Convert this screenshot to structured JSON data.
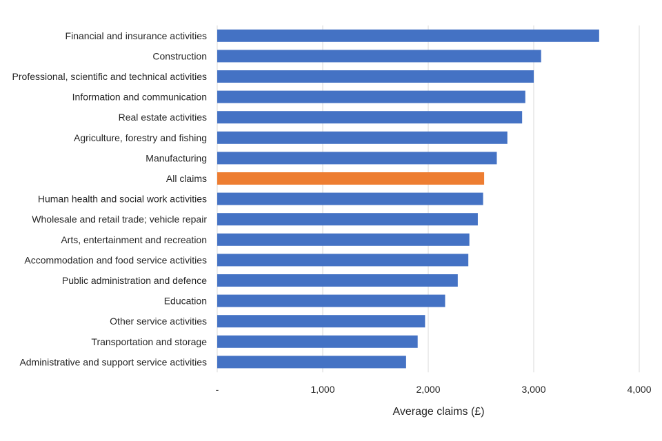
{
  "chart_data": {
    "type": "bar",
    "orientation": "horizontal",
    "title": "",
    "xlabel": "Average claims (£)",
    "ylabel": "",
    "xlim": [
      0,
      4000
    ],
    "grid": true,
    "legend": "none",
    "x_ticks": [
      {
        "value": 0,
        "label": "-"
      },
      {
        "value": 1000,
        "label": "1,000"
      },
      {
        "value": 2000,
        "label": "2,000"
      },
      {
        "value": 3000,
        "label": "3,000"
      },
      {
        "value": 4000,
        "label": "4,000"
      }
    ],
    "categories": [
      "Financial and insurance activities",
      "Construction",
      "Professional, scientific and technical activities",
      "Information and communication",
      "Real estate activities",
      "Agriculture, forestry and fishing",
      "Manufacturing",
      "All claims",
      "Human health and social work activities",
      "Wholesale and retail trade; vehicle repair",
      "Arts, entertainment and recreation",
      "Accommodation and food service activities",
      "Public administration and defence",
      "Education",
      "Other service activities",
      "Transportation and storage",
      "Administrative and support service activities"
    ],
    "values": [
      3620,
      3070,
      3000,
      2920,
      2890,
      2750,
      2650,
      2530,
      2520,
      2470,
      2390,
      2380,
      2280,
      2160,
      1970,
      1900,
      1790
    ],
    "colors": {
      "default": "#4472c4",
      "highlight": "#ed7d31"
    },
    "highlight_category": "All claims"
  }
}
